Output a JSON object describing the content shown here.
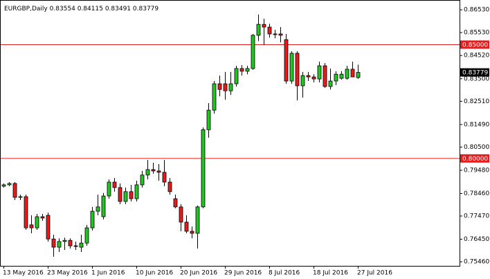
{
  "chart_data": {
    "type": "candlestick",
    "title": "EURGBP,Daily",
    "title_values": [
      "0.83554",
      "0.84115",
      "0.83491",
      "0.83779"
    ],
    "categories": [
      "13 May 2016",
      null,
      null,
      null,
      null,
      null,
      null,
      null,
      "23 May 2016",
      null,
      null,
      null,
      null,
      null,
      null,
      null,
      "1 Jun 2016",
      null,
      null,
      null,
      null,
      null,
      null,
      null,
      "10 Jun 2016",
      null,
      null,
      null,
      null,
      null,
      null,
      null,
      "20 Jun 2016",
      null,
      null,
      null,
      null,
      null,
      null,
      null,
      "29 Jun 2016",
      null,
      null,
      null,
      null,
      null,
      null,
      null,
      "8 Jul 2016",
      null,
      null,
      null,
      null,
      null,
      null,
      null,
      "18 Jul 2016",
      null,
      null,
      null,
      null,
      null,
      null,
      null,
      "27 Jul 2016"
    ],
    "open": [
      0.7878,
      0.7884,
      0.789,
      0.7829,
      0.7832,
      0.7708,
      0.7695,
      0.7744,
      0.775,
      0.7646,
      0.761,
      0.7635,
      0.764,
      0.7616,
      0.761,
      0.7628,
      0.7695,
      0.7768,
      0.7744,
      0.7835,
      0.7896,
      0.7872,
      0.7811,
      0.7854,
      0.7823,
      0.7884,
      0.7927,
      0.7951,
      0.7945,
      0.7939,
      0.7896,
      0.7823,
      0.7787,
      0.772,
      0.768,
      0.7671,
      0.7787,
      0.8126,
      0.8212,
      0.8328,
      0.8328,
      0.8297,
      0.8328,
      0.8395,
      0.8383,
      0.8395,
      0.8541,
      0.8589,
      0.8577,
      0.8547,
      0.8547,
      0.8522,
      0.834,
      0.8462,
      0.8319,
      0.8364,
      0.8358,
      0.8349,
      0.8407,
      0.8316,
      0.834,
      0.8352,
      0.8352,
      0.8392,
      0.83554
    ],
    "high": [
      0.789,
      0.7896,
      0.7896,
      0.7841,
      0.7841,
      0.775,
      0.7756,
      0.7756,
      0.7762,
      0.7665,
      0.7649,
      0.7652,
      0.7649,
      0.7635,
      0.7665,
      0.7708,
      0.7787,
      0.7841,
      0.7848,
      0.7908,
      0.7914,
      0.789,
      0.7872,
      0.7884,
      0.7902,
      0.7945,
      0.7993,
      0.7981,
      0.7975,
      0.7993,
      0.7914,
      0.7841,
      0.7799,
      0.775,
      0.7701,
      0.7793,
      0.8136,
      0.8243,
      0.834,
      0.8364,
      0.838,
      0.838,
      0.8407,
      0.841,
      0.8407,
      0.8547,
      0.8632,
      0.8614,
      0.8592,
      0.8565,
      0.8577,
      0.8547,
      0.8471,
      0.8471,
      0.838,
      0.838,
      0.837,
      0.8425,
      0.8419,
      0.8395,
      0.8383,
      0.8383,
      0.8407,
      0.8425,
      0.84115
    ],
    "low": [
      0.7872,
      0.7878,
      0.7817,
      0.7817,
      0.7686,
      0.7671,
      0.7686,
      0.7726,
      0.7635,
      0.7568,
      0.7589,
      0.7598,
      0.7604,
      0.7598,
      0.7589,
      0.7616,
      0.7683,
      0.775,
      0.7732,
      0.7823,
      0.7854,
      0.7799,
      0.7799,
      0.7811,
      0.7811,
      0.7872,
      0.7908,
      0.7933,
      0.7902,
      0.7878,
      0.7841,
      0.7781,
      0.768,
      0.7671,
      0.7649,
      0.7604,
      0.7781,
      0.8091,
      0.8197,
      0.8273,
      0.8258,
      0.8279,
      0.8316,
      0.8364,
      0.837,
      0.8389,
      0.8516,
      0.8498,
      0.8531,
      0.8528,
      0.851,
      0.8328,
      0.8328,
      0.8255,
      0.8267,
      0.834,
      0.8334,
      0.8334,
      0.831,
      0.8303,
      0.8322,
      0.8346,
      0.8346,
      0.8358,
      0.83491
    ],
    "close": [
      0.7884,
      0.789,
      0.7829,
      0.7832,
      0.7695,
      0.7695,
      0.7744,
      0.7738,
      0.7646,
      0.761,
      0.7635,
      0.764,
      0.7616,
      0.7613,
      0.7628,
      0.7695,
      0.7768,
      0.7787,
      0.7835,
      0.7896,
      0.7872,
      0.7811,
      0.7854,
      0.7823,
      0.7884,
      0.7927,
      0.7951,
      0.7945,
      0.7939,
      0.7896,
      0.7854,
      0.7787,
      0.772,
      0.768,
      0.7671,
      0.7787,
      0.8126,
      0.8212,
      0.8328,
      0.8303,
      0.8297,
      0.8328,
      0.8395,
      0.8383,
      0.8395,
      0.8541,
      0.8589,
      0.8577,
      0.8547,
      0.8547,
      0.8541,
      0.834,
      0.8462,
      0.8319,
      0.8364,
      0.8358,
      0.8349,
      0.8407,
      0.8316,
      0.834,
      0.837,
      0.837,
      0.8392,
      0.8358,
      0.83779
    ],
    "up_color": "#22c322",
    "down_color": "#e41c1c",
    "ylim": [
      0.7528,
      0.8693
    ],
    "yticks": [
      {
        "value": 0.8653,
        "label": "0.86530"
      },
      {
        "value": 0.8553,
        "label": "0.85530"
      },
      {
        "value": 0.8452,
        "label": "0.84520"
      },
      {
        "value": 0.835,
        "label": "0.83500"
      },
      {
        "value": 0.8251,
        "label": "0.82510"
      },
      {
        "value": 0.8149,
        "label": "0.81490"
      },
      {
        "value": 0.805,
        "label": "0.80500"
      },
      {
        "value": 0.7948,
        "label": "0.79480"
      },
      {
        "value": 0.7846,
        "label": "0.78460"
      },
      {
        "value": 0.7747,
        "label": "0.77470"
      },
      {
        "value": 0.7645,
        "label": "0.76450"
      },
      {
        "value": 0.7546,
        "label": "0.75460"
      }
    ],
    "levels": [
      {
        "value": 0.85,
        "label": "0.85000"
      },
      {
        "value": 0.8,
        "label": "0.80000"
      }
    ],
    "level_color": "#e41c1c",
    "last_price": {
      "value": 0.83779,
      "label": "0.83779"
    }
  }
}
